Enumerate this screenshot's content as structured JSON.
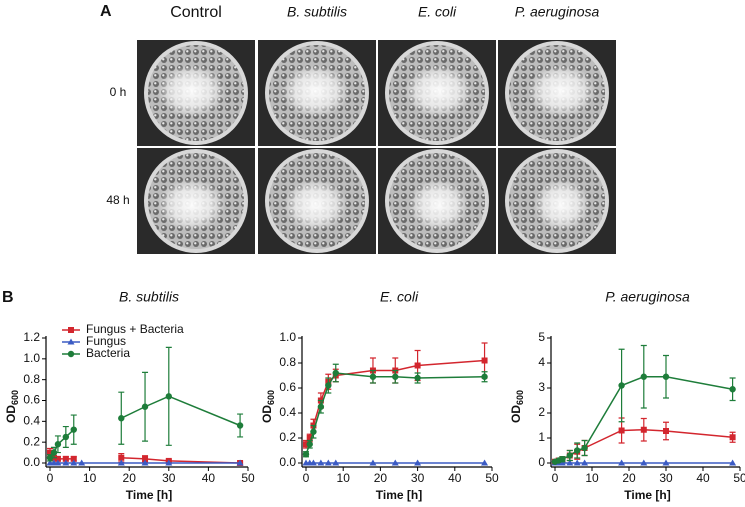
{
  "panel_a": {
    "label": "A",
    "columns": [
      "Control",
      "B. subtilis",
      "E. coli",
      "P. aeruginosa"
    ],
    "rows": [
      "0 h",
      "48 h"
    ]
  },
  "panel_b": {
    "label": "B"
  },
  "chart_data": [
    {
      "type": "line",
      "title": "B. subtilis",
      "xlabel": "Time [h]",
      "ylabel": "OD",
      "ylabel_subscript": "600",
      "x": [
        0,
        1,
        2,
        4,
        6,
        8,
        18,
        24,
        30,
        48
      ],
      "xlim": [
        0,
        50
      ],
      "xticks": [
        0,
        10,
        20,
        30,
        40,
        50
      ],
      "ylim": [
        0,
        1.2
      ],
      "yticks": [
        {
          "value": 0,
          "label": "0.0"
        },
        0.2,
        0.4,
        0.6,
        0.8,
        {
          "value": 1,
          "label": "1.0"
        },
        1.2
      ],
      "legend": "upper left",
      "series": [
        {
          "name": "Fungus + Bacteria",
          "color": "#d3262e",
          "marker": "square",
          "values": [
            0.1,
            0.05,
            0.04,
            0.04,
            0.04,
            null,
            0.05,
            0.04,
            0.02,
            0
          ],
          "errors": [
            0.04,
            0.02,
            0.02,
            0.02,
            0.02,
            null,
            0.04,
            0.03,
            0.01,
            0.01
          ]
        },
        {
          "name": "Fungus",
          "color": "#3b5bc4",
          "marker": "triangle",
          "values": [
            0,
            0,
            0,
            0,
            0,
            0,
            0,
            0,
            0,
            0
          ]
        },
        {
          "name": "Bacteria",
          "color": "#1e7d3a",
          "marker": "circle",
          "values": [
            0.05,
            0.1,
            0.18,
            0.25,
            0.32,
            null,
            0.43,
            0.54,
            0.64,
            0.36
          ],
          "errors": [
            0.03,
            0.05,
            0.08,
            0.1,
            0.14,
            null,
            0.25,
            0.33,
            0.47,
            0.11
          ]
        }
      ]
    },
    {
      "type": "line",
      "title": "E. coli",
      "xlabel": "Time [h]",
      "ylabel": "OD",
      "ylabel_subscript": "600",
      "x": [
        0,
        1,
        2,
        4,
        6,
        8,
        18,
        24,
        30,
        48
      ],
      "xlim": [
        0,
        50
      ],
      "xticks": [
        0,
        10,
        20,
        30,
        40,
        50
      ],
      "ylim": [
        0,
        1
      ],
      "yticks": [
        {
          "value": 0,
          "label": "0.0"
        },
        0.2,
        0.4,
        0.6,
        0.8,
        {
          "value": 1,
          "label": "1.0"
        }
      ],
      "series": [
        {
          "color": "#d3262e",
          "marker": "square",
          "values": [
            0.15,
            0.2,
            0.3,
            0.5,
            0.65,
            0.7,
            0.74,
            0.74,
            0.78,
            0.82
          ],
          "errors": [
            0.03,
            0.03,
            0.05,
            0.06,
            0.06,
            0.05,
            0.1,
            0.1,
            0.12,
            0.14
          ]
        },
        {
          "color": "#3b5bc4",
          "marker": "triangle",
          "values": [
            0,
            0,
            0,
            0,
            0,
            0,
            0,
            0,
            0,
            0
          ]
        },
        {
          "color": "#1e7d3a",
          "marker": "circle",
          "values": [
            0.07,
            0.15,
            0.25,
            0.45,
            0.62,
            0.72,
            0.69,
            0.69,
            0.68,
            0.69
          ],
          "errors": [
            0.02,
            0.03,
            0.05,
            0.05,
            0.06,
            0.07,
            0.05,
            0.05,
            0.04,
            0.04
          ]
        }
      ]
    },
    {
      "type": "line",
      "title": "P. aeruginosa",
      "xlabel": "Time [h]",
      "ylabel": "OD",
      "ylabel_subscript": "600",
      "x": [
        0,
        1,
        2,
        4,
        6,
        8,
        18,
        24,
        30,
        48
      ],
      "xlim": [
        0,
        50
      ],
      "xticks": [
        0,
        10,
        20,
        30,
        40,
        50
      ],
      "ylim": [
        0,
        5
      ],
      "yticks": [
        0,
        1,
        2,
        3,
        4,
        5
      ],
      "series": [
        {
          "color": "#d3262e",
          "marker": "square",
          "values": [
            0.05,
            0.1,
            0.15,
            0.3,
            0.45,
            0.6,
            1.3,
            1.33,
            1.28,
            1.03
          ],
          "errors": [
            0.02,
            0.05,
            0.1,
            0.2,
            0.3,
            0.3,
            0.5,
            0.45,
            0.35,
            0.2
          ]
        },
        {
          "color": "#3b5bc4",
          "marker": "triangle",
          "values": [
            0,
            0,
            0,
            0,
            0,
            0,
            0,
            0,
            0,
            0
          ]
        },
        {
          "color": "#1e7d3a",
          "marker": "circle",
          "values": [
            0.05,
            0.1,
            0.15,
            0.3,
            0.5,
            0.6,
            3.1,
            3.45,
            3.45,
            2.95
          ],
          "errors": [
            0.02,
            0.05,
            0.1,
            0.2,
            0.3,
            0.3,
            1.45,
            1.25,
            0.85,
            0.45
          ]
        }
      ]
    }
  ]
}
